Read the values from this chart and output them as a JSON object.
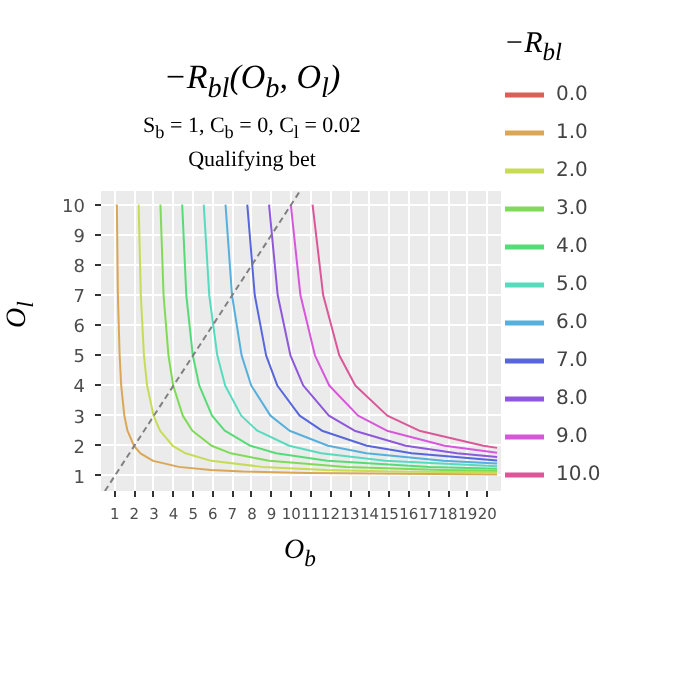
{
  "chart_data": {
    "type": "line",
    "title": "−R$_{bl}$(O$_{b}$, O$_{l}$)",
    "subtitle": "S$_{b}$ = 1, C$_{b}$ = 0, C$_{l}$ = 0.02",
    "annotations": [
      "Qualifying bet"
    ],
    "xlabel": "O$_{b}$",
    "ylabel": "O$_{l}$",
    "legend_title": "−R$_{bl}$",
    "xlim": [
      0.3,
      20.7
    ],
    "ylim": [
      0.5,
      10.45
    ],
    "xticks": [
      1,
      2,
      3,
      4,
      5,
      6,
      7,
      8,
      9,
      10,
      11,
      12,
      13,
      14,
      15,
      16,
      17,
      18,
      19,
      20
    ],
    "yticks": [
      1,
      2,
      3,
      4,
      5,
      6,
      7,
      8,
      9,
      10
    ],
    "grid": true,
    "legend": "right",
    "line_style": "solid",
    "marker": "none",
    "series": [
      {
        "name": "0.0",
        "color": "#db5f57"
      },
      {
        "name": "1.0",
        "color": "#dba757",
        "x": [
          1.11,
          1.16,
          1.25,
          1.33,
          1.49,
          1.65,
          1.98,
          2.31,
          2.96,
          4.27,
          5.9,
          7.53,
          10.8,
          20.5
        ],
        "values": [
          10,
          7,
          5,
          4,
          3,
          2.5,
          2,
          1.75,
          1.5,
          1.3,
          1.2,
          1.15,
          1.1,
          1.05
        ]
      },
      {
        "name": "2.0",
        "color": "#c7db57",
        "x": [
          2.22,
          2.33,
          2.49,
          2.65,
          2.98,
          3.31,
          3.96,
          4.61,
          5.92,
          8.53,
          11.8,
          15.07,
          20.5
        ],
        "values": [
          10,
          7,
          5,
          4,
          3,
          2.5,
          2,
          1.75,
          1.5,
          1.3,
          1.2,
          1.15,
          1.11
        ]
      },
      {
        "name": "3.0",
        "color": "#7fdb57",
        "x": [
          3.33,
          3.49,
          3.74,
          3.98,
          4.47,
          4.96,
          5.94,
          6.92,
          8.88,
          12.8,
          17.7,
          20.5
        ],
        "values": [
          10,
          7,
          5,
          4,
          3,
          2.5,
          2,
          1.75,
          1.5,
          1.3,
          1.2,
          1.17
        ]
      },
      {
        "name": "4.0",
        "color": "#57db77",
        "x": [
          4.44,
          4.65,
          4.98,
          5.31,
          5.96,
          6.61,
          7.92,
          9.23,
          11.84,
          17.07,
          20.5
        ],
        "values": [
          10,
          7,
          5,
          4,
          3,
          2.5,
          2,
          1.75,
          1.5,
          1.3,
          1.24
        ]
      },
      {
        "name": "5.0",
        "color": "#57dbbf",
        "x": [
          5.54,
          5.82,
          6.23,
          6.63,
          7.45,
          8.27,
          9.9,
          11.53,
          14.8,
          20.5
        ],
        "values": [
          10,
          7,
          5,
          4,
          3,
          2.5,
          2,
          1.75,
          1.5,
          1.32
        ]
      },
      {
        "name": "6.0",
        "color": "#57afdb",
        "x": [
          6.65,
          6.98,
          7.47,
          7.96,
          8.94,
          9.92,
          11.88,
          13.84,
          17.76,
          20.5
        ],
        "values": [
          10,
          7,
          5,
          4,
          3,
          2.5,
          2,
          1.75,
          1.5,
          1.41
        ]
      },
      {
        "name": "7.0",
        "color": "#5767db",
        "x": [
          7.76,
          8.14,
          8.72,
          9.29,
          10.43,
          11.57,
          13.86,
          16.15,
          20.5
        ],
        "values": [
          10,
          7,
          5,
          4,
          3,
          2.5,
          2,
          1.75,
          1.51
        ]
      },
      {
        "name": "8.0",
        "color": "#8f57db",
        "x": [
          8.87,
          9.31,
          9.96,
          10.61,
          11.92,
          13.23,
          15.84,
          18.45,
          20.5
        ],
        "values": [
          10,
          7,
          5,
          4,
          3,
          2.5,
          2,
          1.75,
          1.63
        ]
      },
      {
        "name": "9.0",
        "color": "#d757db",
        "x": [
          9.98,
          10.47,
          11.21,
          11.94,
          13.41,
          14.88,
          17.82,
          20.5
        ],
        "values": [
          10,
          7,
          5,
          4,
          3,
          2.5,
          2,
          1.77
        ]
      },
      {
        "name": "10.0",
        "color": "#db5797",
        "x": [
          11.09,
          11.63,
          12.45,
          13.27,
          14.9,
          16.53,
          19.8,
          20.5
        ],
        "values": [
          10,
          7,
          5,
          4,
          3,
          2.5,
          2,
          1.93
        ]
      },
      {
        "color": "#808080",
        "line_style": "dashed",
        "x": [
          0.5,
          10.4
        ],
        "values": [
          0.5,
          10.4
        ]
      }
    ]
  }
}
